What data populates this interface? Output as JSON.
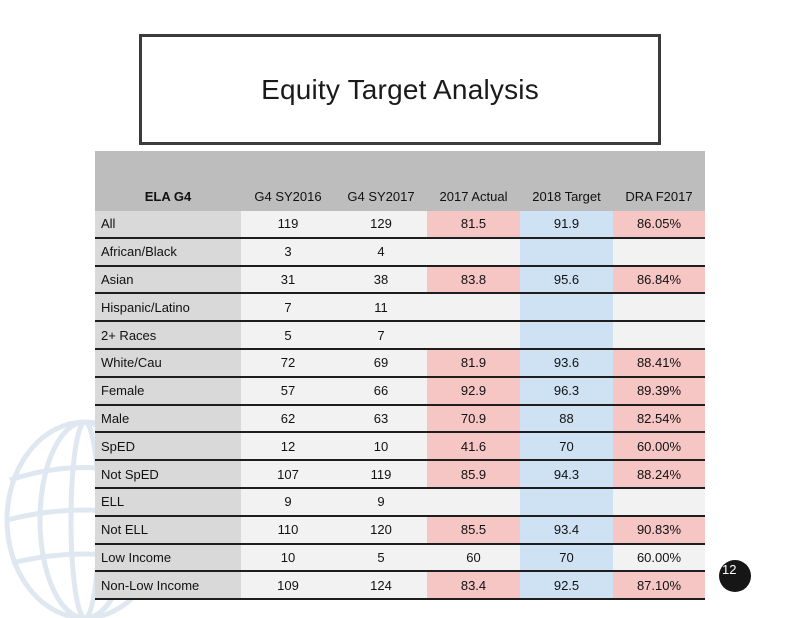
{
  "title": "Equity Target Analysis",
  "table": {
    "headers": [
      "ELA  G4",
      "G4 SY2016",
      "G4 SY2017",
      "2017 Actual",
      "2018 Target",
      "DRA  F2017"
    ],
    "rows": [
      [
        "All",
        "119",
        "129",
        "81.5",
        "91.9",
        "86.05%"
      ],
      [
        "African/Black",
        "3",
        "4",
        "",
        "",
        ""
      ],
      [
        "Asian",
        "31",
        "38",
        "83.8",
        "95.6",
        "86.84%"
      ],
      [
        "Hispanic/Latino",
        "7",
        "11",
        "",
        "",
        ""
      ],
      [
        "2+ Races",
        "5",
        "7",
        "",
        "",
        ""
      ],
      [
        "White/Cau",
        "72",
        "69",
        "81.9",
        "93.6",
        "88.41%"
      ],
      [
        "Female",
        "57",
        "66",
        "92.9",
        "96.3",
        "89.39%"
      ],
      [
        "Male",
        "62",
        "63",
        "70.9",
        "88",
        "82.54%"
      ],
      [
        "SpED",
        "12",
        "10",
        "41.6",
        "70",
        "60.00%"
      ],
      [
        "Not SpED",
        "107",
        "119",
        "85.9",
        "94.3",
        "88.24%"
      ],
      [
        "ELL",
        "9",
        "9",
        "",
        "",
        ""
      ],
      [
        "Not ELL",
        "110",
        "120",
        "85.5",
        "93.4",
        "90.83%"
      ],
      [
        "Low Income",
        "10",
        "5",
        "60",
        "70",
        "60.00%"
      ],
      [
        "Non-Low Income",
        "109",
        "124",
        "83.4",
        "92.5",
        "87.10%"
      ]
    ]
  },
  "colors": {
    "header": "#bdbdbd",
    "label_column": "#d9d9d9",
    "cell": "#f2f2f2",
    "actual_highlight": "#f5c6c4",
    "target_column": "#cfe2f3"
  },
  "page_number": "12",
  "decoration_icon": "globe-watermark-icon"
}
